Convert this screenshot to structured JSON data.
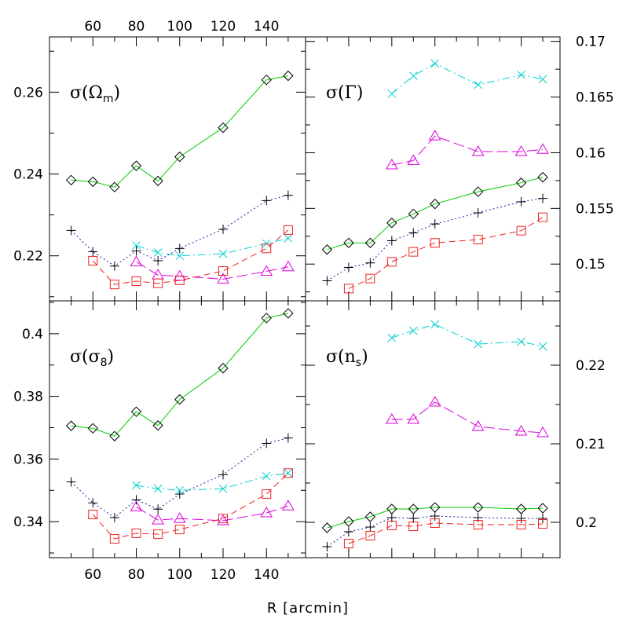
{
  "xlabel": "R [arcmin]",
  "x_tick_labels": [
    "60",
    "80",
    "100",
    "120",
    "140"
  ],
  "chart_data": [
    {
      "type": "line",
      "panel": "top-left",
      "label": {
        "base": "σ(Ω",
        "sub": "m",
        "close": ")"
      },
      "xlim": [
        40,
        158
      ],
      "ylim": [
        0.209,
        0.2735
      ],
      "y_ticks": [
        0.22,
        0.24,
        0.26
      ],
      "y_tick_labels": [
        "0.22",
        "0.24",
        "0.26"
      ],
      "y_axis_side": "left",
      "series": [
        {
          "color": "#00cc00",
          "marker": "diamond",
          "dash": "",
          "x": [
            50,
            60,
            70,
            80,
            90,
            100,
            120,
            140,
            150
          ],
          "y": [
            0.2385,
            0.2381,
            0.2368,
            0.242,
            0.2383,
            0.2442,
            0.2513,
            0.263,
            0.264
          ]
        },
        {
          "color": "#2222aa",
          "marker": "plus",
          "dash": "2,3",
          "x": [
            50,
            60,
            70,
            80,
            90,
            100,
            120,
            140,
            150
          ],
          "y": [
            0.2262,
            0.221,
            0.2175,
            0.2212,
            0.2188,
            0.2218,
            0.2265,
            0.2335,
            0.2348
          ]
        },
        {
          "color": "#00d0d0",
          "marker": "cross",
          "dash": "10,4,2,4",
          "x": [
            80,
            90,
            100,
            120,
            140,
            150
          ],
          "y": [
            0.2225,
            0.2208,
            0.22,
            0.2205,
            0.223,
            0.2243
          ]
        },
        {
          "color": "#dd00dd",
          "marker": "triangle",
          "dash": "14,5",
          "x": [
            80,
            90,
            100,
            120,
            140,
            150
          ],
          "y": [
            0.2185,
            0.2153,
            0.215,
            0.2143,
            0.2162,
            0.2173
          ]
        },
        {
          "color": "#ee2222",
          "marker": "square",
          "dash": "8,5",
          "x": [
            60,
            70,
            80,
            90,
            100,
            120,
            140,
            150
          ],
          "y": [
            0.2188,
            0.213,
            0.2138,
            0.2133,
            0.214,
            0.2163,
            0.2218,
            0.2263
          ]
        }
      ]
    },
    {
      "type": "line",
      "panel": "top-right",
      "label": {
        "base": "σ(Γ)",
        "sub": "",
        "close": ""
      },
      "xlim": [
        40,
        158
      ],
      "ylim": [
        0.1467,
        0.1704
      ],
      "y_ticks": [
        0.15,
        0.155,
        0.16,
        0.165,
        0.17
      ],
      "y_tick_labels": [
        "0.15",
        "0.155",
        "0.16",
        "0.165",
        "0.17"
      ],
      "y_axis_side": "right",
      "series": [
        {
          "color": "#00cc00",
          "marker": "diamond",
          "dash": "",
          "x": [
            50,
            60,
            70,
            80,
            90,
            100,
            120,
            140,
            150
          ],
          "y": [
            0.1513,
            0.1519,
            0.1519,
            0.1537,
            0.1545,
            0.1554,
            0.1565,
            0.1573,
            0.1578
          ]
        },
        {
          "color": "#2222aa",
          "marker": "plus",
          "dash": "2,3",
          "x": [
            50,
            60,
            70,
            80,
            90,
            100,
            120,
            140,
            150
          ],
          "y": [
            0.1485,
            0.1497,
            0.1501,
            0.1521,
            0.1528,
            0.1536,
            0.1546,
            0.1556,
            0.1559
          ]
        },
        {
          "color": "#00d0d0",
          "marker": "cross",
          "dash": "10,4,2,4",
          "x": [
            80,
            90,
            100,
            120,
            140,
            150
          ],
          "y": [
            0.1653,
            0.1669,
            0.168,
            0.1661,
            0.167,
            0.1666
          ]
        },
        {
          "color": "#dd00dd",
          "marker": "triangle",
          "dash": "14,5",
          "x": [
            80,
            90,
            100,
            120,
            140,
            150
          ],
          "y": [
            0.1589,
            0.1593,
            0.1615,
            0.1601,
            0.1601,
            0.1603
          ]
        },
        {
          "color": "#ee2222",
          "marker": "square",
          "dash": "8,5",
          "x": [
            60,
            70,
            80,
            90,
            100,
            120,
            140,
            150
          ],
          "y": [
            0.1478,
            0.1487,
            0.1502,
            0.1511,
            0.1519,
            0.1522,
            0.153,
            0.1542
          ]
        }
      ]
    },
    {
      "type": "line",
      "panel": "bottom-left",
      "label": {
        "base": "σ(σ",
        "sub": "8",
        "close": ")"
      },
      "xlim": [
        40,
        158
      ],
      "ylim": [
        0.3285,
        0.4105
      ],
      "y_ticks": [
        0.34,
        0.36,
        0.38,
        0.4
      ],
      "y_tick_labels": [
        "0.34",
        "0.36",
        "0.38",
        "0.4"
      ],
      "y_axis_side": "left",
      "series": [
        {
          "color": "#00cc00",
          "marker": "diamond",
          "dash": "",
          "x": [
            50,
            60,
            70,
            80,
            90,
            100,
            120,
            140,
            150
          ],
          "y": [
            0.3706,
            0.3698,
            0.3673,
            0.3751,
            0.3707,
            0.379,
            0.389,
            0.405,
            0.4065
          ]
        },
        {
          "color": "#2222aa",
          "marker": "plus",
          "dash": "2,3",
          "x": [
            50,
            60,
            70,
            80,
            90,
            100,
            120,
            140,
            150
          ],
          "y": [
            0.3527,
            0.346,
            0.3413,
            0.347,
            0.344,
            0.3488,
            0.355,
            0.365,
            0.3667
          ]
        },
        {
          "color": "#00d0d0",
          "marker": "cross",
          "dash": "10,4,2,4",
          "x": [
            80,
            90,
            100,
            120,
            140,
            150
          ],
          "y": [
            0.3516,
            0.3505,
            0.35,
            0.3505,
            0.3545,
            0.3555
          ]
        },
        {
          "color": "#dd00dd",
          "marker": "triangle",
          "dash": "14,5",
          "x": [
            80,
            90,
            100,
            120,
            140,
            150
          ],
          "y": [
            0.3447,
            0.3405,
            0.341,
            0.3403,
            0.3428,
            0.345
          ]
        },
        {
          "color": "#ee2222",
          "marker": "square",
          "dash": "8,5",
          "x": [
            60,
            70,
            80,
            90,
            100,
            120,
            140,
            150
          ],
          "y": [
            0.3423,
            0.3345,
            0.3363,
            0.336,
            0.3375,
            0.341,
            0.3488,
            0.3555
          ]
        }
      ]
    },
    {
      "type": "line",
      "panel": "bottom-right",
      "label": {
        "base": "σ(n",
        "sub": "s",
        "close": ")"
      },
      "xlim": [
        40,
        158
      ],
      "ylim": [
        0.1955,
        0.2282
      ],
      "y_ticks": [
        0.2,
        0.21,
        0.22
      ],
      "y_tick_labels": [
        "0.2",
        "0.21",
        "0.22"
      ],
      "y_axis_side": "right",
      "series": [
        {
          "color": "#00cc00",
          "marker": "diamond",
          "dash": "",
          "x": [
            50,
            60,
            70,
            80,
            90,
            100,
            120,
            140,
            150
          ],
          "y": [
            0.1993,
            0.2001,
            0.2007,
            0.2017,
            0.2017,
            0.2019,
            0.2019,
            0.2017,
            0.2018
          ]
        },
        {
          "color": "#2222aa",
          "marker": "plus",
          "dash": "2,3",
          "x": [
            50,
            60,
            70,
            80,
            90,
            100,
            120,
            140,
            150
          ],
          "y": [
            0.1969,
            0.1988,
            0.1994,
            0.2006,
            0.2005,
            0.2008,
            0.2006,
            0.2005,
            0.2005
          ]
        },
        {
          "color": "#00d0d0",
          "marker": "cross",
          "dash": "10,4,2,4",
          "x": [
            80,
            90,
            100,
            120,
            140,
            150
          ],
          "y": [
            0.2235,
            0.2244,
            0.2252,
            0.2227,
            0.223,
            0.2224
          ]
        },
        {
          "color": "#dd00dd",
          "marker": "triangle",
          "dash": "14,5",
          "x": [
            80,
            90,
            100,
            120,
            140,
            150
          ],
          "y": [
            0.2131,
            0.2131,
            0.2153,
            0.2122,
            0.2116,
            0.2114
          ]
        },
        {
          "color": "#ee2222",
          "marker": "square",
          "dash": "8,5",
          "x": [
            60,
            70,
            80,
            90,
            100,
            120,
            140,
            150
          ],
          "y": [
            0.1973,
            0.1983,
            0.1996,
            0.1995,
            0.1999,
            0.1997,
            0.1997,
            0.1998
          ]
        }
      ]
    }
  ]
}
